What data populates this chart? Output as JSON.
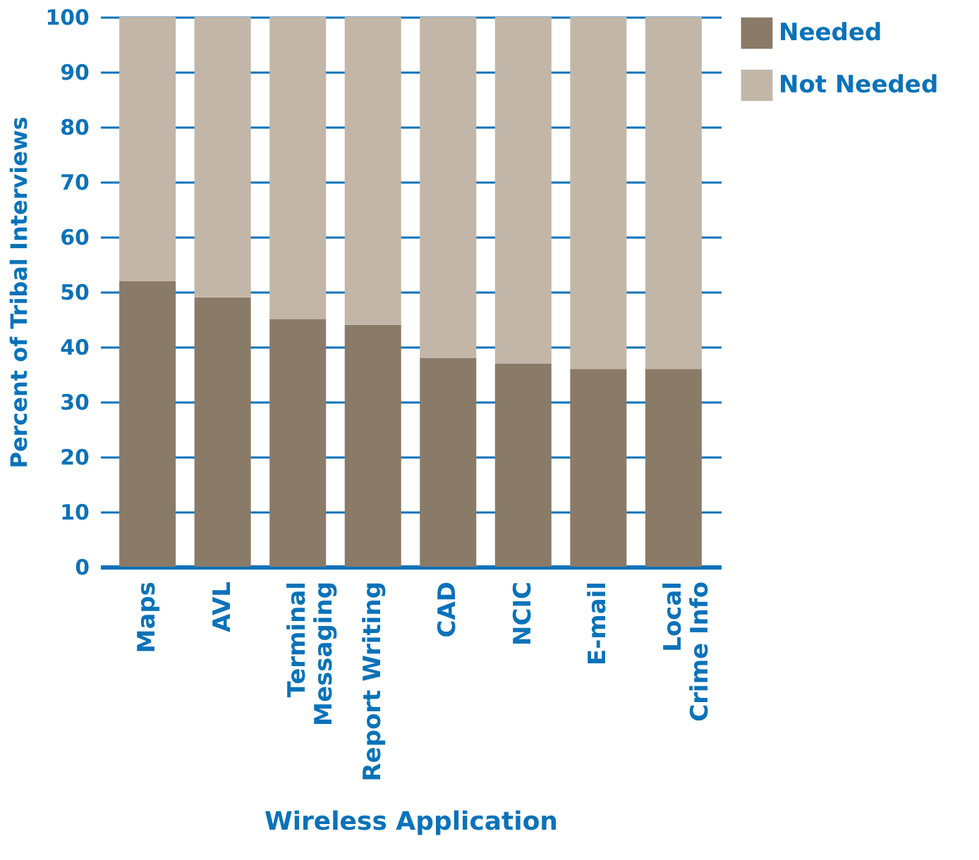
{
  "chart_data": {
    "type": "bar",
    "stacked": true,
    "xlabel": "Wireless Application",
    "ylabel": "Percent of Tribal Interviews",
    "categories": [
      "Maps",
      "AVL",
      "Terminal\nMessaging",
      "Report Writing",
      "CAD",
      "NCIC",
      "E-mail",
      "Local\nCrime Info"
    ],
    "series": [
      {
        "name": "Needed",
        "color": "#8a7a68",
        "values": [
          52,
          49,
          45,
          44,
          38,
          37,
          36,
          36
        ]
      },
      {
        "name": "Not Needed",
        "color": "#c2b6a8",
        "values": [
          48,
          51,
          55,
          56,
          62,
          63,
          64,
          64
        ]
      }
    ],
    "ylim": [
      0,
      100
    ],
    "yticks": [
      0,
      10,
      20,
      30,
      40,
      50,
      60,
      70,
      80,
      90,
      100
    ],
    "grid": "y",
    "legend": "top right"
  }
}
